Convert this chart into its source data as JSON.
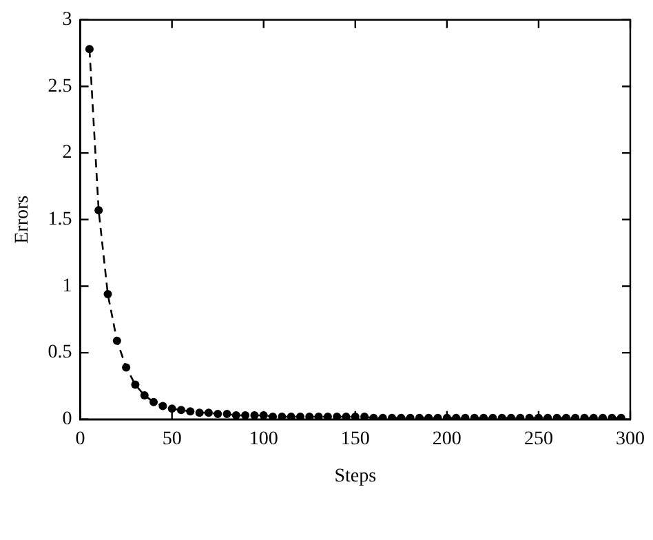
{
  "chart_data": {
    "type": "line",
    "xlabel": "Steps",
    "ylabel": "Errors",
    "x": [
      5,
      10,
      15,
      20,
      25,
      30,
      35,
      40,
      45,
      50,
      55,
      60,
      65,
      70,
      75,
      80,
      85,
      90,
      95,
      100,
      105,
      110,
      115,
      120,
      125,
      130,
      135,
      140,
      145,
      150,
      155,
      160,
      165,
      170,
      175,
      180,
      185,
      190,
      195,
      200,
      205,
      210,
      215,
      220,
      225,
      230,
      235,
      240,
      245,
      250,
      255,
      260,
      265,
      270,
      275,
      280,
      285,
      290,
      295
    ],
    "series": [
      {
        "color": "#000000",
        "values": [
          2.78,
          1.57,
          0.94,
          0.59,
          0.39,
          0.26,
          0.18,
          0.13,
          0.1,
          0.08,
          0.07,
          0.06,
          0.05,
          0.05,
          0.04,
          0.04,
          0.03,
          0.03,
          0.03,
          0.03,
          0.02,
          0.02,
          0.02,
          0.02,
          0.02,
          0.02,
          0.02,
          0.02,
          0.02,
          0.02,
          0.02,
          0.01,
          0.01,
          0.01,
          0.01,
          0.01,
          0.01,
          0.01,
          0.01,
          0.01,
          0.01,
          0.01,
          0.01,
          0.01,
          0.01,
          0.01,
          0.01,
          0.01,
          0.01,
          0.01,
          0.01,
          0.01,
          0.01,
          0.01,
          0.01,
          0.01,
          0.01,
          0.01,
          0.01
        ]
      }
    ],
    "xlim": [
      0,
      300
    ],
    "xticks": [
      0,
      50,
      100,
      150,
      200,
      250,
      300
    ],
    "ylim": [
      0,
      3
    ],
    "yticks": [
      0,
      0.5,
      1,
      1.5,
      2,
      2.5,
      3
    ],
    "marker": "circle",
    "line_style": "dashed",
    "grid": false,
    "legend": false
  }
}
